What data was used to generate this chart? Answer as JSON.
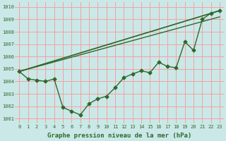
{
  "bg_color": "#cbe8e8",
  "grid_color": "#f5a0a0",
  "line_color": "#2d6a2d",
  "marker": "D",
  "markersize": 2.5,
  "linewidth": 1.0,
  "xlabel": "Graphe pression niveau de la mer (hPa)",
  "xlabel_fontsize": 6.5,
  "xlabel_color": "#2d6a2d",
  "yticks": [
    1001,
    1002,
    1003,
    1004,
    1005,
    1006,
    1007,
    1008,
    1009,
    1010
  ],
  "xticks": [
    0,
    1,
    2,
    3,
    4,
    5,
    6,
    7,
    8,
    9,
    10,
    11,
    12,
    13,
    14,
    15,
    16,
    17,
    18,
    19,
    20,
    21,
    22,
    23
  ],
  "ylim": [
    1000.6,
    1010.4
  ],
  "xlim": [
    -0.5,
    23.5
  ],
  "zigzag": [
    1004.8,
    1004.2,
    1004.1,
    1004.0,
    1004.2,
    1001.9,
    1001.6,
    1001.3,
    1002.2,
    1002.6,
    1002.8,
    1003.5,
    1004.3,
    1004.6,
    1004.85,
    1004.7,
    1005.55,
    1005.2,
    1005.1,
    1007.2,
    1006.5,
    1009.0,
    1009.5,
    1009.7
  ],
  "straight_lines": [
    {
      "x0": 0,
      "y0": 1004.8,
      "x1": 23,
      "y1": 1009.7
    },
    {
      "x0": 0,
      "y0": 1004.8,
      "x1": 23,
      "y1": 1009.2
    },
    {
      "x0": 0,
      "y0": 1004.8,
      "x1": 23,
      "y1": 1009.7
    }
  ]
}
